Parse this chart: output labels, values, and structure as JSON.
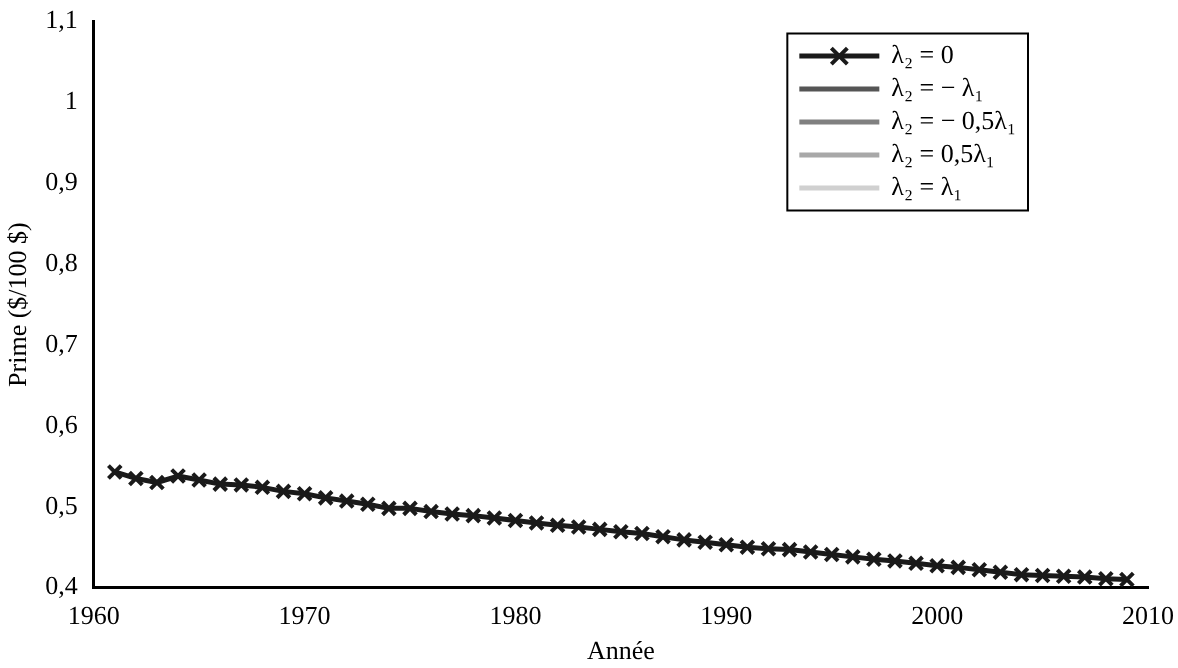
{
  "chart_data": {
    "type": "line",
    "xlabel": "Année",
    "ylabel": "Prime ($/100 $)",
    "x": [
      1961,
      1962,
      1963,
      1964,
      1965,
      1966,
      1967,
      1968,
      1969,
      1970,
      1971,
      1972,
      1973,
      1974,
      1975,
      1976,
      1977,
      1978,
      1979,
      1980,
      1981,
      1982,
      1983,
      1984,
      1985,
      1986,
      1987,
      1988,
      1989,
      1990,
      1991,
      1992,
      1993,
      1994,
      1995,
      1996,
      1997,
      1998,
      1999,
      2000,
      2001,
      2002,
      2003,
      2004,
      2005,
      2006,
      2007,
      2008,
      2009
    ],
    "series": [
      {
        "name": "λ₂ = 0",
        "color": "#1a1a1a",
        "marker": "cross",
        "values": [
          0.543,
          0.535,
          0.53,
          0.538,
          0.533,
          0.528,
          0.527,
          0.524,
          0.519,
          0.516,
          0.511,
          0.507,
          0.503,
          0.498,
          0.498,
          0.494,
          0.491,
          0.489,
          0.486,
          0.483,
          0.48,
          0.477,
          0.475,
          0.472,
          0.469,
          0.467,
          0.463,
          0.459,
          0.456,
          0.453,
          0.45,
          0.448,
          0.447,
          0.444,
          0.441,
          0.438,
          0.435,
          0.433,
          0.43,
          0.427,
          0.425,
          0.422,
          0.419,
          0.416,
          0.415,
          0.414,
          0.413,
          0.411,
          0.41
        ]
      },
      {
        "name": "λ₂ = − λ₁",
        "color": "#555555",
        "marker": "none",
        "values": [
          null,
          null,
          null,
          null,
          null,
          null,
          null,
          null,
          null,
          null,
          null,
          null,
          null,
          null,
          null,
          null,
          null,
          null,
          null,
          null,
          null,
          null,
          null,
          null,
          null,
          null,
          null,
          null,
          null,
          null,
          null,
          null,
          null,
          null,
          null,
          null,
          null,
          null,
          null,
          null,
          null,
          null,
          null,
          null,
          null,
          null,
          null,
          null,
          null
        ]
      },
      {
        "name": "λ₂ = − 0,5λ₁",
        "color": "#808080",
        "marker": "none",
        "values": [
          null,
          null,
          null,
          null,
          null,
          null,
          null,
          null,
          null,
          null,
          null,
          null,
          null,
          null,
          null,
          null,
          null,
          null,
          null,
          null,
          null,
          null,
          null,
          null,
          null,
          null,
          null,
          null,
          null,
          null,
          null,
          null,
          null,
          null,
          null,
          null,
          null,
          null,
          null,
          null,
          null,
          null,
          null,
          null,
          null,
          null,
          null,
          null,
          null
        ]
      },
      {
        "name": "λ₂ = 0,5λ₁",
        "color": "#a8a8a8",
        "marker": "none",
        "values": [
          null,
          null,
          null,
          null,
          null,
          null,
          null,
          null,
          null,
          null,
          null,
          null,
          null,
          null,
          null,
          null,
          null,
          null,
          null,
          null,
          null,
          null,
          null,
          null,
          null,
          null,
          null,
          null,
          null,
          null,
          null,
          null,
          null,
          null,
          null,
          null,
          null,
          null,
          null,
          null,
          null,
          null,
          null,
          null,
          null,
          null,
          null,
          null,
          null
        ]
      },
      {
        "name": "λ₂ = λ₁",
        "color": "#d0d0d0",
        "marker": "none",
        "values": [
          null,
          null,
          null,
          null,
          null,
          null,
          null,
          null,
          null,
          null,
          null,
          null,
          null,
          null,
          null,
          null,
          null,
          null,
          null,
          null,
          null,
          null,
          null,
          null,
          null,
          null,
          null,
          null,
          null,
          null,
          null,
          null,
          null,
          null,
          null,
          null,
          null,
          null,
          null,
          null,
          null,
          null,
          null,
          null,
          null,
          null,
          null,
          null,
          null
        ]
      }
    ],
    "xlim": [
      1960,
      2010
    ],
    "xticks": [
      1960,
      1970,
      1980,
      1990,
      2000,
      2010
    ],
    "ylim": [
      0.4,
      1.1
    ],
    "yticks": [
      {
        "value": 0.4,
        "label": "0,4"
      },
      {
        "value": 0.5,
        "label": "0,5"
      },
      {
        "value": 0.6,
        "label": "0,6"
      },
      {
        "value": 0.7,
        "label": "0,7"
      },
      {
        "value": 0.8,
        "label": "0,8"
      },
      {
        "value": 0.9,
        "label": "0,9"
      },
      {
        "value": 1,
        "label": "1"
      },
      {
        "value": 1.1,
        "label": "1,1"
      }
    ],
    "grid": false,
    "legend": "top right",
    "line_style": "solid"
  }
}
